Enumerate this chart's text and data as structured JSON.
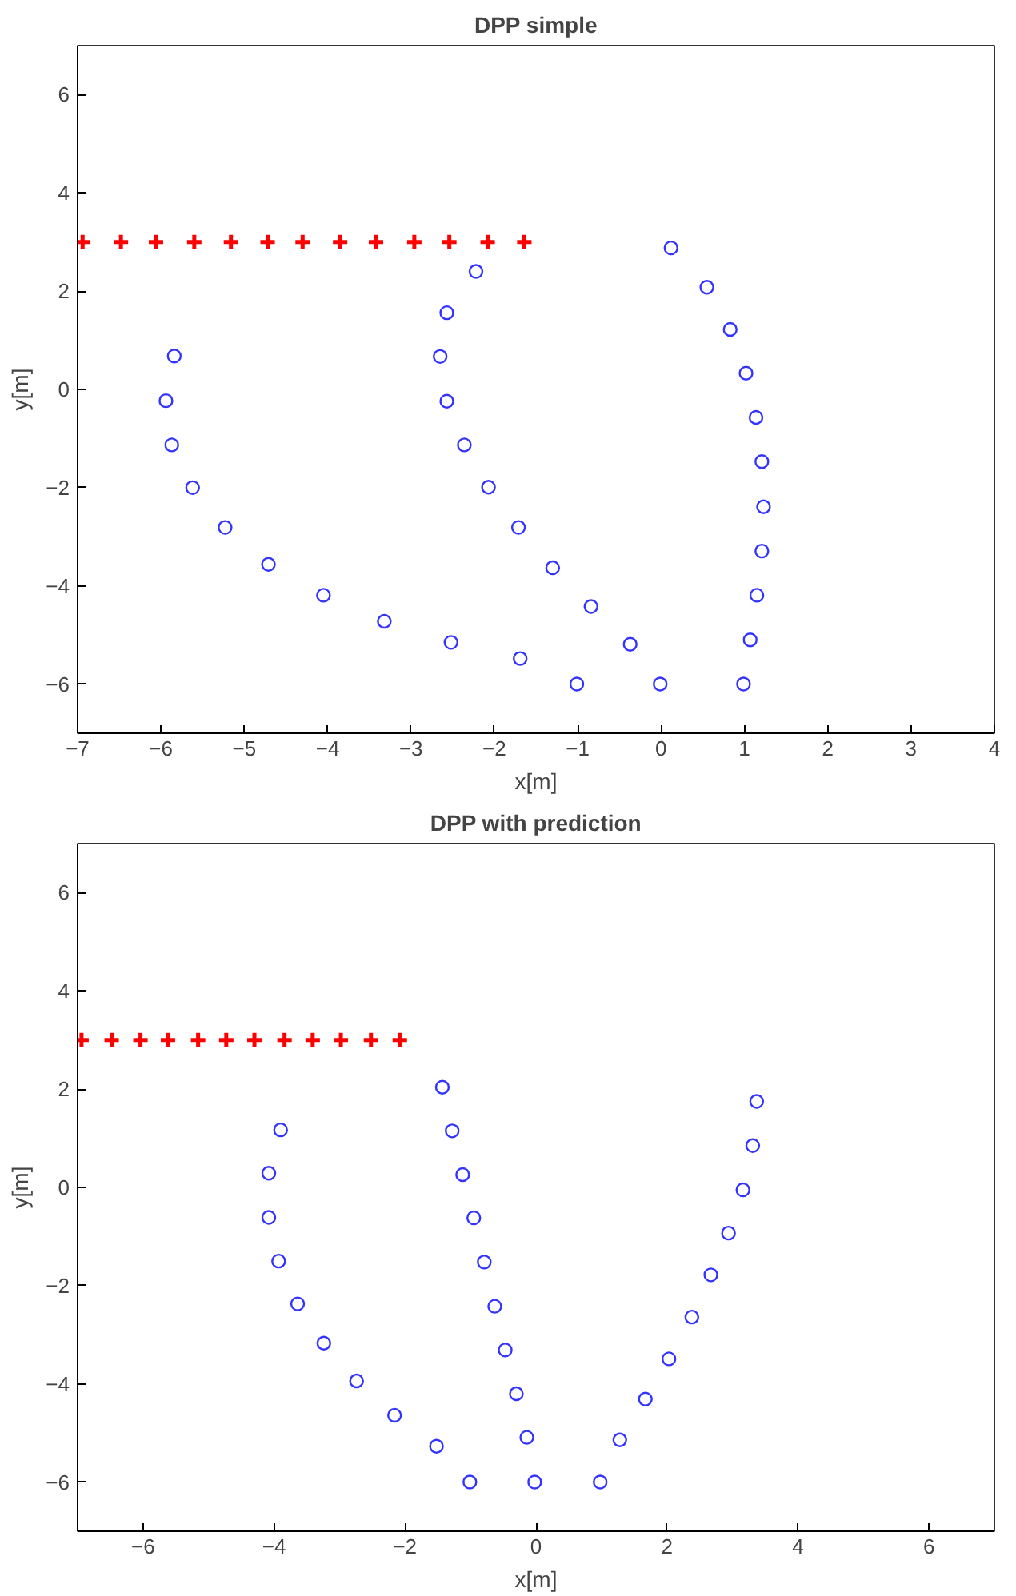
{
  "chart_data": [
    {
      "type": "scatter",
      "title": "DPP simple",
      "xlabel": "x[m]",
      "ylabel": "y[m]",
      "xlim": [
        -7,
        4
      ],
      "ylim": [
        -7,
        7
      ],
      "xticks": [
        -7,
        -6,
        -5,
        -4,
        -3,
        -2,
        -1,
        0,
        1,
        2,
        3,
        4
      ],
      "yticks": [
        -6,
        -4,
        -2,
        0,
        2,
        4,
        6
      ],
      "grid": false,
      "series": [
        {
          "marker": "cross",
          "color": "#ff0000",
          "x": [
            -6.94,
            -6.48,
            -6.06,
            -5.6,
            -5.16,
            -4.72,
            -4.3,
            -3.85,
            -3.42,
            -2.96,
            -2.54,
            -2.08,
            -1.64
          ],
          "values": [
            3,
            3,
            3,
            3,
            3,
            3,
            3,
            3,
            3,
            3,
            3,
            3,
            3
          ]
        },
        {
          "marker": "circle",
          "color": "#3333ff",
          "x": [
            -5.84,
            -5.94,
            -5.87,
            -5.62,
            -5.23,
            -4.71,
            -4.05,
            -3.32,
            -2.52,
            -1.69,
            -2.22,
            -2.57,
            -2.65,
            -2.57,
            -2.36,
            -2.07,
            -1.71,
            -1.3,
            -0.84,
            -0.37,
            -1.01,
            -0.01,
            0.99,
            0.12,
            0.55,
            0.83,
            1.02,
            1.14,
            1.21,
            1.23,
            1.21,
            1.15,
            1.07
          ],
          "values": [
            0.68,
            -0.23,
            -1.13,
            -2.0,
            -2.81,
            -3.56,
            -4.19,
            -4.72,
            -5.15,
            -5.48,
            2.4,
            1.56,
            0.67,
            -0.24,
            -1.13,
            -1.99,
            -2.81,
            -3.63,
            -4.42,
            -5.19,
            -6.0,
            -6.0,
            -6.0,
            2.88,
            2.08,
            1.22,
            0.33,
            -0.57,
            -1.47,
            -2.39,
            -3.29,
            -4.19,
            -5.1
          ]
        }
      ]
    },
    {
      "type": "scatter",
      "title": "DPP with prediction",
      "xlabel": "x[m]",
      "ylabel": "y[m]",
      "xlim": [
        -7,
        7
      ],
      "ylim": [
        -7,
        7
      ],
      "xticks": [
        -6,
        -4,
        -2,
        0,
        2,
        4,
        6
      ],
      "yticks": [
        -6,
        -4,
        -2,
        0,
        2,
        4,
        6
      ],
      "grid": false,
      "series": [
        {
          "marker": "cross",
          "color": "#ff0000",
          "x": [
            -6.94,
            -6.48,
            -6.04,
            -5.62,
            -5.16,
            -4.73,
            -4.3,
            -3.84,
            -3.41,
            -2.98,
            -2.52,
            -2.08
          ],
          "values": [
            3,
            3,
            3,
            3,
            3,
            3,
            3,
            3,
            3,
            3,
            3,
            3
          ]
        },
        {
          "marker": "circle",
          "color": "#3333ff",
          "x": [
            -3.9,
            -4.08,
            -4.08,
            -3.93,
            -3.64,
            -3.24,
            -2.74,
            -2.16,
            -1.52,
            -1.01,
            -1.43,
            -1.28,
            -1.12,
            -0.95,
            -0.79,
            -0.63,
            -0.47,
            -0.3,
            -0.14,
            -0.02,
            0.98,
            1.28,
            1.67,
            2.03,
            2.38,
            2.67,
            2.94,
            3.16,
            3.31,
            3.37
          ],
          "values": [
            1.17,
            0.29,
            -0.61,
            -1.5,
            -2.37,
            -3.17,
            -3.94,
            -4.64,
            -5.27,
            -6.0,
            2.04,
            1.15,
            0.26,
            -0.62,
            -1.52,
            -2.42,
            -3.31,
            -4.2,
            -5.09,
            -6.0,
            -6.0,
            -5.14,
            -4.31,
            -3.49,
            -2.64,
            -1.78,
            -0.93,
            -0.05,
            0.85,
            1.75
          ]
        }
      ]
    }
  ]
}
